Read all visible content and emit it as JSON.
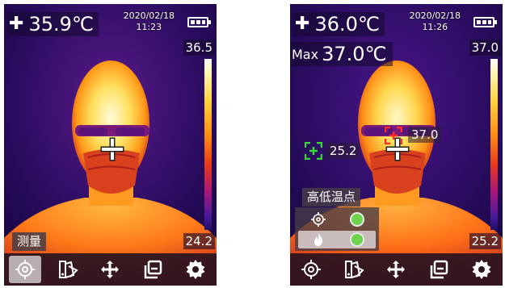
{
  "left": {
    "temperature": "35.9℃",
    "date": "2020/02/18",
    "time": "11:23",
    "scale_max": "36.5",
    "scale_min": "24.2",
    "mode_label": "测量"
  },
  "right": {
    "temperature": "36.0℃",
    "date": "2020/02/18",
    "time": "11:26",
    "max_label": "Max",
    "max_value": "37.0℃",
    "scale_max": "37.0",
    "scale_min": "25.2",
    "hot_point_temp": "37.0",
    "cold_point_temp": "25.2",
    "highlow_title": "高低温点"
  },
  "toolbar_icons": [
    "measure-icon",
    "palette-icon",
    "move-icon",
    "layers-icon",
    "settings-icon"
  ],
  "colors": {
    "hot_marker": "#ff2a2a",
    "cold_marker": "#33dd33",
    "toggle_on": "#6ed34e",
    "active_tool": "#b8aeb2"
  }
}
